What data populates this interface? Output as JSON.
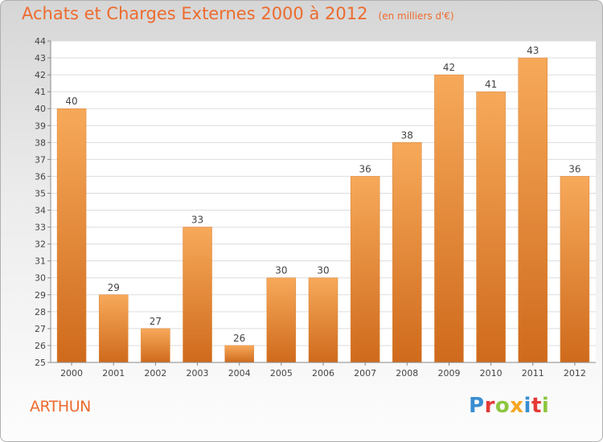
{
  "header": {
    "title": "Achats et Charges Externes 2000 à 2012",
    "unit": "(en milliers d'€)"
  },
  "footer": {
    "commune": "ARTHUN",
    "brand": "Proxiti",
    "brand_colors": [
      "#3a8ed1",
      "#e53935",
      "#8dc63f",
      "#f5a623",
      "#3a8ed1",
      "#e53935",
      "#8dc63f"
    ]
  },
  "colors": {
    "accent": "#ed6b2d",
    "bar_light": "#f7a95a",
    "bar_dark": "#cf6a1c"
  },
  "chart_data": {
    "type": "bar",
    "categories": [
      "2000",
      "2001",
      "2002",
      "2003",
      "2004",
      "2005",
      "2006",
      "2007",
      "2008",
      "2009",
      "2010",
      "2011",
      "2012"
    ],
    "values": [
      40,
      29,
      27,
      33,
      26,
      30,
      30,
      36,
      38,
      42,
      41,
      43,
      36
    ],
    "data_labels": [
      "40",
      "29",
      "27",
      "33",
      "26",
      "30",
      "30",
      "36",
      "38",
      "42",
      "41",
      "43",
      "36"
    ],
    "yticks": [
      25,
      26,
      27,
      28,
      29,
      30,
      31,
      32,
      33,
      34,
      35,
      36,
      37,
      38,
      39,
      40,
      41,
      42,
      43,
      44
    ],
    "ylim": [
      25,
      44
    ],
    "grid": true,
    "title": "Achats et Charges Externes 2000 à 2012",
    "xlabel": "",
    "ylabel": ""
  }
}
